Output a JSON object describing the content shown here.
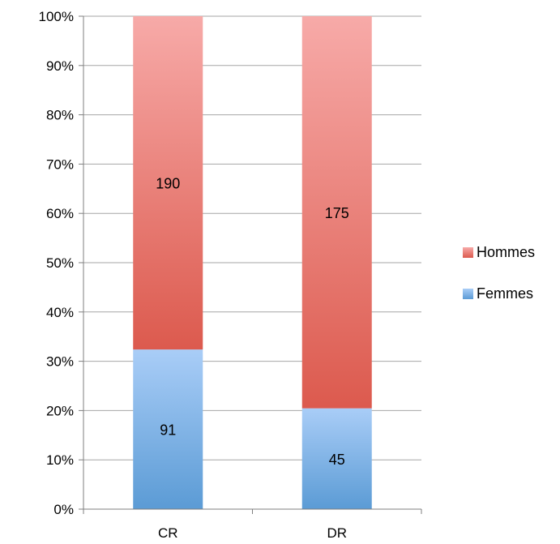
{
  "chart_data": {
    "type": "bar",
    "stacked": true,
    "normalized": true,
    "categories": [
      "CR",
      "DR"
    ],
    "series": [
      {
        "name": "Femmes",
        "values": [
          91,
          45
        ],
        "color": "#5b9bd5"
      },
      {
        "name": "Hommes",
        "values": [
          190,
          175
        ],
        "color": "#e06666"
      }
    ],
    "y_ticks": [
      "0%",
      "10%",
      "20%",
      "30%",
      "40%",
      "50%",
      "60%",
      "70%",
      "80%",
      "90%",
      "100%"
    ],
    "ylim": [
      0,
      100
    ],
    "grid": true,
    "legend": {
      "position": "right",
      "order": [
        "Hommes",
        "Femmes"
      ]
    }
  }
}
